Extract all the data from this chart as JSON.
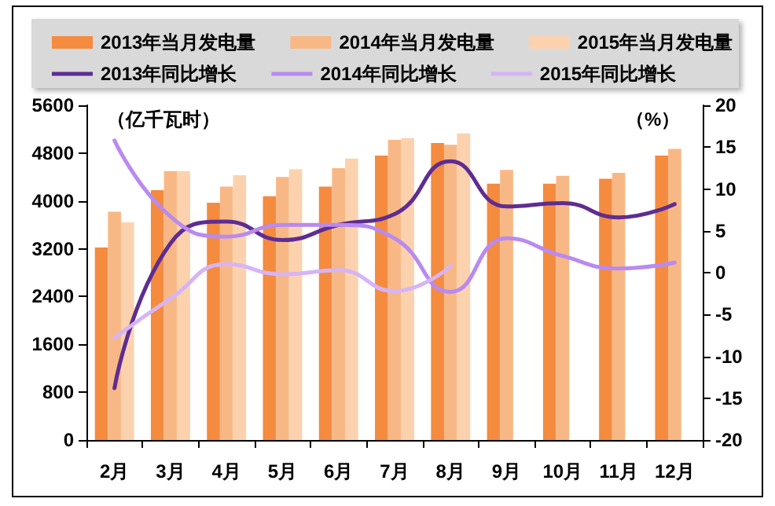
{
  "chart_data": {
    "type": "bar",
    "categories": [
      "2月",
      "3月",
      "4月",
      "5月",
      "6月",
      "7月",
      "8月",
      "9月",
      "10月",
      "11月",
      "12月"
    ],
    "series": [
      {
        "name": "2013年当月发电量",
        "color": "#f58b3f",
        "values": [
          3220,
          4180,
          3970,
          4080,
          4240,
          4760,
          4970,
          4290,
          4290,
          4370,
          4760
        ]
      },
      {
        "name": "2014年当月发电量",
        "color": "#f8b886",
        "values": [
          3820,
          4500,
          4240,
          4400,
          4550,
          5020,
          4940,
          4520,
          4420,
          4470,
          4870
        ]
      },
      {
        "name": "2015年当月发电量",
        "color": "#fcd2ae",
        "values": [
          3640,
          4500,
          4430,
          4530,
          4710,
          5050,
          5130,
          null,
          null,
          null,
          null
        ]
      },
      {
        "name": "2013年同比增长",
        "type": "line",
        "axis": "y2",
        "color": "#5e2d91",
        "values": [
          -13.8,
          3.5,
          6.1,
          3.9,
          5.7,
          7.0,
          13.3,
          7.9,
          8.3,
          6.6,
          8.2
        ]
      },
      {
        "name": "2014年同比增长",
        "type": "line",
        "axis": "y2",
        "color": "#b98af0",
        "values": [
          15.8,
          6.7,
          4.3,
          5.7,
          5.7,
          4.1,
          -2.3,
          4.1,
          2.0,
          0.5,
          1.2
        ]
      },
      {
        "name": "2015年同比增长",
        "type": "line",
        "axis": "y2",
        "color": "#d6b4f5",
        "values": [
          -7.8,
          -3.1,
          1.0,
          -0.2,
          0.3,
          -2.2,
          0.8,
          null,
          null,
          null,
          null
        ]
      }
    ],
    "ylim": [
      0,
      5600
    ],
    "yticks": [
      0,
      800,
      1600,
      2400,
      3200,
      4000,
      4800,
      5600
    ],
    "y2lim": [
      -20,
      20
    ],
    "y2ticks": [
      -20,
      -15,
      -10,
      -5,
      0,
      5,
      10,
      15,
      20
    ],
    "annotations": [
      "（亿千瓦时）",
      "（%）"
    ],
    "legend": "top",
    "grid": false,
    "marker": "none",
    "line_style": "solid"
  }
}
